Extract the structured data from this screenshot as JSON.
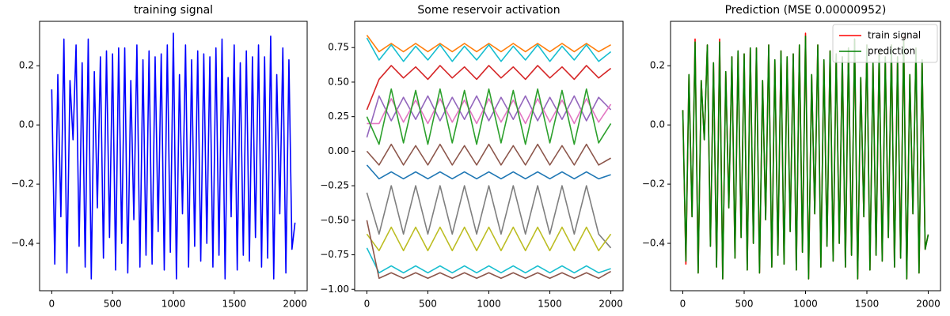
{
  "chart_data": [
    {
      "type": "line",
      "title": "training signal",
      "x": [
        0,
        25,
        50,
        75,
        100,
        125,
        150,
        175,
        200,
        225,
        250,
        275,
        300,
        325,
        350,
        375,
        400,
        425,
        450,
        475,
        500,
        525,
        550,
        575,
        600,
        625,
        650,
        675,
        700,
        725,
        750,
        775,
        800,
        825,
        850,
        875,
        900,
        925,
        950,
        975,
        1000,
        1025,
        1050,
        1075,
        1100,
        1125,
        1150,
        1175,
        1200,
        1225,
        1250,
        1275,
        1300,
        1325,
        1350,
        1375,
        1400,
        1425,
        1450,
        1475,
        1500,
        1525,
        1550,
        1575,
        1600,
        1625,
        1650,
        1675,
        1700,
        1725,
        1750,
        1775,
        1800,
        1825,
        1850,
        1875,
        1900,
        1925,
        1950,
        1975,
        2000
      ],
      "series": [
        {
          "color": "#0000ff",
          "values": [
            0.12,
            -0.47,
            0.17,
            -0.31,
            0.29,
            -0.5,
            0.15,
            -0.05,
            0.27,
            -0.41,
            0.21,
            -0.48,
            0.29,
            -0.52,
            0.18,
            -0.28,
            0.23,
            -0.45,
            0.25,
            -0.38,
            0.24,
            -0.49,
            0.26,
            -0.4,
            0.26,
            -0.5,
            0.15,
            -0.32,
            0.27,
            -0.48,
            0.22,
            -0.44,
            0.25,
            -0.47,
            0.23,
            -0.36,
            0.24,
            -0.49,
            0.27,
            -0.43,
            0.31,
            -0.52,
            0.17,
            -0.3,
            0.27,
            -0.48,
            0.22,
            -0.41,
            0.25,
            -0.46,
            0.24,
            -0.4,
            0.23,
            -0.48,
            0.26,
            -0.44,
            0.29,
            -0.52,
            0.16,
            -0.31,
            0.27,
            -0.49,
            0.21,
            -0.44,
            0.25,
            -0.46,
            0.23,
            -0.38,
            0.27,
            -0.48,
            0.23,
            -0.45,
            0.3,
            -0.52,
            0.17,
            -0.3,
            0.26,
            -0.5,
            0.22,
            -0.42,
            -0.33
          ]
        }
      ],
      "xlim": [
        -100,
        2100
      ],
      "xticks": [
        0,
        500,
        1000,
        1500,
        2000
      ],
      "ylim": [
        -0.56,
        0.35
      ],
      "yticks": [
        {
          "value": -0.4,
          "label": "−0.4"
        },
        {
          "value": -0.2,
          "label": "−0.2"
        },
        {
          "value": 0,
          "label": "0.0"
        },
        0.2
      ]
    },
    {
      "type": "line",
      "title": "Some reservoir activation",
      "x": [
        0,
        100,
        200,
        300,
        400,
        500,
        600,
        700,
        800,
        900,
        1000,
        1100,
        1200,
        1300,
        1400,
        1500,
        1600,
        1700,
        1800,
        1900,
        2000
      ],
      "series": [
        {
          "color": "#ff7f0e",
          "values": [
            0.84,
            0.72,
            0.78,
            0.72,
            0.78,
            0.72,
            0.78,
            0.72,
            0.78,
            0.72,
            0.78,
            0.72,
            0.78,
            0.72,
            0.78,
            0.72,
            0.78,
            0.72,
            0.78,
            0.72,
            0.77
          ]
        },
        {
          "color": "#17becf",
          "values": [
            0.82,
            0.66,
            0.77,
            0.65,
            0.76,
            0.66,
            0.77,
            0.65,
            0.76,
            0.66,
            0.77,
            0.65,
            0.76,
            0.66,
            0.77,
            0.65,
            0.76,
            0.66,
            0.77,
            0.65,
            0.72
          ]
        },
        {
          "color": "#d62728",
          "values": [
            0.3,
            0.52,
            0.62,
            0.53,
            0.61,
            0.52,
            0.62,
            0.53,
            0.61,
            0.52,
            0.62,
            0.53,
            0.61,
            0.52,
            0.62,
            0.53,
            0.61,
            0.52,
            0.62,
            0.53,
            0.6
          ]
        },
        {
          "color": "#9467bd",
          "values": [
            0.1,
            0.4,
            0.22,
            0.39,
            0.23,
            0.4,
            0.22,
            0.39,
            0.23,
            0.4,
            0.22,
            0.39,
            0.23,
            0.4,
            0.22,
            0.39,
            0.23,
            0.4,
            0.22,
            0.39,
            0.3
          ]
        },
        {
          "color": "#e377c2",
          "values": [
            0.2,
            0.2,
            0.38,
            0.21,
            0.37,
            0.2,
            0.38,
            0.21,
            0.37,
            0.2,
            0.38,
            0.21,
            0.37,
            0.2,
            0.38,
            0.21,
            0.37,
            0.2,
            0.38,
            0.21,
            0.34
          ]
        },
        {
          "color": "#2ca02c",
          "values": [
            0.25,
            0.05,
            0.45,
            0.06,
            0.44,
            0.05,
            0.45,
            0.06,
            0.44,
            0.05,
            0.45,
            0.06,
            0.44,
            0.05,
            0.45,
            0.06,
            0.44,
            0.05,
            0.45,
            0.06,
            0.2
          ]
        },
        {
          "color": "#8c564b",
          "values": [
            0.0,
            -0.1,
            0.05,
            -0.1,
            0.04,
            -0.1,
            0.05,
            -0.1,
            0.04,
            -0.1,
            0.05,
            -0.1,
            0.04,
            -0.1,
            0.05,
            -0.1,
            0.04,
            -0.1,
            0.05,
            -0.1,
            -0.05
          ]
        },
        {
          "color": "#1f77b4",
          "values": [
            -0.1,
            -0.2,
            -0.15,
            -0.2,
            -0.15,
            -0.2,
            -0.15,
            -0.2,
            -0.15,
            -0.2,
            -0.15,
            -0.2,
            -0.15,
            -0.2,
            -0.15,
            -0.2,
            -0.15,
            -0.2,
            -0.15,
            -0.2,
            -0.17
          ]
        },
        {
          "color": "#7f7f7f",
          "values": [
            -0.3,
            -0.6,
            -0.25,
            -0.6,
            -0.25,
            -0.6,
            -0.25,
            -0.6,
            -0.25,
            -0.6,
            -0.25,
            -0.6,
            -0.25,
            -0.6,
            -0.25,
            -0.6,
            -0.25,
            -0.6,
            -0.25,
            -0.6,
            -0.7
          ]
        },
        {
          "color": "#bcbd22",
          "values": [
            -0.6,
            -0.72,
            -0.55,
            -0.72,
            -0.55,
            -0.72,
            -0.55,
            -0.72,
            -0.55,
            -0.72,
            -0.55,
            -0.72,
            -0.55,
            -0.72,
            -0.55,
            -0.72,
            -0.55,
            -0.72,
            -0.55,
            -0.72,
            -0.6
          ]
        },
        {
          "color": "#17becf",
          "values": [
            -0.7,
            -0.88,
            -0.83,
            -0.88,
            -0.83,
            -0.88,
            -0.83,
            -0.88,
            -0.83,
            -0.88,
            -0.83,
            -0.88,
            -0.83,
            -0.88,
            -0.83,
            -0.88,
            -0.83,
            -0.88,
            -0.83,
            -0.88,
            -0.85
          ]
        },
        {
          "color": "#8c564b",
          "values": [
            -0.5,
            -0.92,
            -0.88,
            -0.92,
            -0.88,
            -0.92,
            -0.88,
            -0.92,
            -0.88,
            -0.92,
            -0.88,
            -0.92,
            -0.88,
            -0.92,
            -0.88,
            -0.92,
            -0.88,
            -0.92,
            -0.88,
            -0.92,
            -0.87
          ]
        }
      ],
      "xlim": [
        -100,
        2100
      ],
      "xticks": [
        0,
        500,
        1000,
        1500,
        2000
      ],
      "ylim": [
        -1.01,
        0.94
      ],
      "yticks": [
        {
          "value": -1,
          "label": "−1.00"
        },
        {
          "value": -0.75,
          "label": "−0.75"
        },
        {
          "value": -0.5,
          "label": "−0.50"
        },
        {
          "value": -0.25,
          "label": "−0.25"
        },
        {
          "value": 0,
          "label": "0.00"
        },
        {
          "value": 0.25,
          "label": "0.25"
        },
        {
          "value": 0.5,
          "label": "0.50"
        },
        {
          "value": 0.75,
          "label": "0.75"
        }
      ]
    },
    {
      "type": "line",
      "title": "Prediction (MSE 0.00000952)",
      "x": [
        0,
        25,
        50,
        75,
        100,
        125,
        150,
        175,
        200,
        225,
        250,
        275,
        300,
        325,
        350,
        375,
        400,
        425,
        450,
        475,
        500,
        525,
        550,
        575,
        600,
        625,
        650,
        675,
        700,
        725,
        750,
        775,
        800,
        825,
        850,
        875,
        900,
        925,
        950,
        975,
        1000,
        1025,
        1050,
        1075,
        1100,
        1125,
        1150,
        1175,
        1200,
        1225,
        1250,
        1275,
        1300,
        1325,
        1350,
        1375,
        1400,
        1425,
        1450,
        1475,
        1500,
        1525,
        1550,
        1575,
        1600,
        1625,
        1650,
        1675,
        1700,
        1725,
        1750,
        1775,
        1800,
        1825,
        1850,
        1875,
        1900,
        1925,
        1950,
        1975,
        2000
      ],
      "series": [
        {
          "name": "train signal",
          "color": "#ff0000",
          "values": [
            0.05,
            -0.47,
            0.17,
            -0.31,
            0.29,
            -0.5,
            0.15,
            -0.05,
            0.27,
            -0.41,
            0.21,
            -0.48,
            0.29,
            -0.52,
            0.18,
            -0.28,
            0.23,
            -0.45,
            0.25,
            -0.38,
            0.24,
            -0.49,
            0.26,
            -0.4,
            0.26,
            -0.5,
            0.15,
            -0.32,
            0.27,
            -0.48,
            0.22,
            -0.44,
            0.25,
            -0.47,
            0.23,
            -0.36,
            0.24,
            -0.49,
            0.27,
            -0.43,
            0.31,
            -0.52,
            0.17,
            -0.3,
            0.27,
            -0.48,
            0.22,
            -0.41,
            0.25,
            -0.46,
            0.24,
            -0.4,
            0.23,
            -0.48,
            0.26,
            -0.44,
            0.29,
            -0.52,
            0.16,
            -0.31,
            0.27,
            -0.49,
            0.21,
            -0.44,
            0.25,
            -0.46,
            0.23,
            -0.38,
            0.27,
            -0.48,
            0.23,
            -0.45,
            0.3,
            -0.52,
            0.17,
            -0.3,
            0.26,
            -0.5,
            0.22,
            -0.42,
            -0.37
          ]
        },
        {
          "name": "prediction",
          "color": "#008000",
          "values": [
            0.05,
            -0.46,
            0.17,
            -0.31,
            0.28,
            -0.5,
            0.15,
            -0.05,
            0.27,
            -0.41,
            0.21,
            -0.48,
            0.28,
            -0.52,
            0.18,
            -0.28,
            0.23,
            -0.45,
            0.25,
            -0.38,
            0.24,
            -0.49,
            0.26,
            -0.4,
            0.26,
            -0.5,
            0.15,
            -0.32,
            0.27,
            -0.48,
            0.22,
            -0.44,
            0.25,
            -0.47,
            0.23,
            -0.36,
            0.24,
            -0.49,
            0.27,
            -0.43,
            0.3,
            -0.52,
            0.17,
            -0.3,
            0.27,
            -0.48,
            0.22,
            -0.41,
            0.25,
            -0.46,
            0.24,
            -0.4,
            0.23,
            -0.48,
            0.26,
            -0.44,
            0.29,
            -0.52,
            0.16,
            -0.31,
            0.27,
            -0.49,
            0.21,
            -0.44,
            0.25,
            -0.46,
            0.23,
            -0.38,
            0.27,
            -0.48,
            0.23,
            -0.45,
            0.29,
            -0.52,
            0.17,
            -0.3,
            0.26,
            -0.5,
            0.22,
            -0.42,
            -0.37
          ]
        }
      ],
      "legend": "upper right",
      "xlim": [
        -100,
        2100
      ],
      "xticks": [
        0,
        500,
        1000,
        1500,
        2000
      ],
      "ylim": [
        -0.56,
        0.35
      ],
      "yticks": [
        {
          "value": -0.4,
          "label": "−0.4"
        },
        {
          "value": -0.2,
          "label": "−0.2"
        },
        {
          "value": 0,
          "label": "0.0"
        },
        0.2
      ]
    }
  ]
}
